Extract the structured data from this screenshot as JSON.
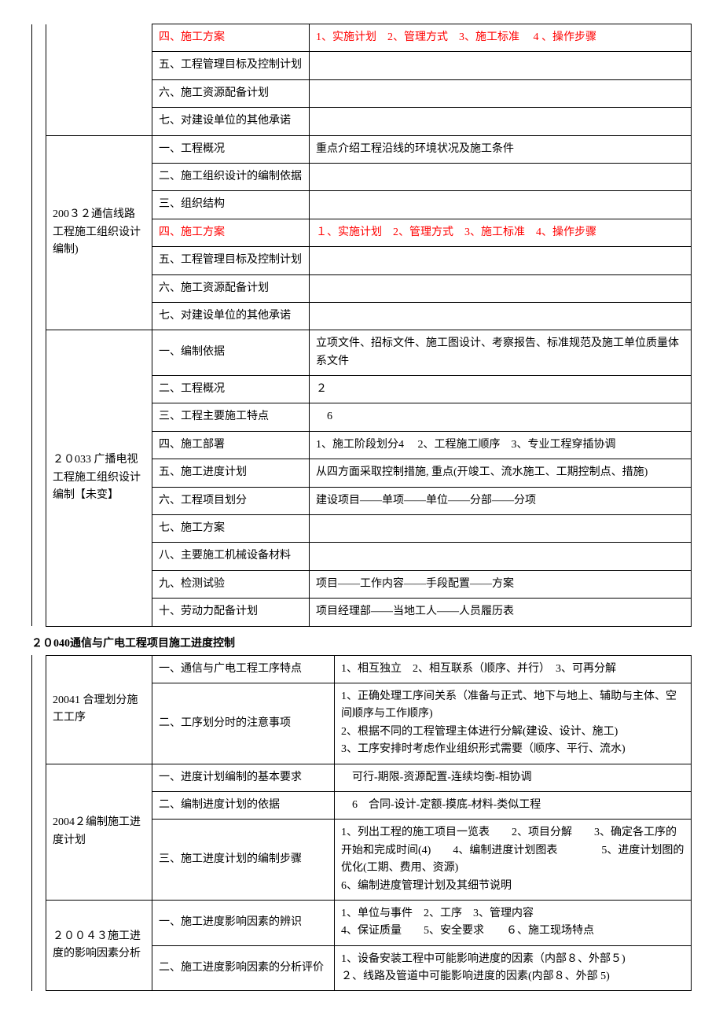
{
  "colors": {
    "text": "#000000",
    "highlight": "#ff0000",
    "border": "#000000",
    "background": "#ffffff"
  },
  "fonts": {
    "family": "SimSun",
    "size_pt": 10.5,
    "line_height": 1.6
  },
  "table1": {
    "group1": {
      "rows": [
        {
          "mid": "四、施工方案",
          "mid_red": true,
          "right": "1、实施计划　2、管理方式　3、施工标准　 4 、操作步骤",
          "right_red": true
        },
        {
          "mid": "五、工程管理目标及控制计划",
          "right": ""
        },
        {
          "mid": "六、施工资源配备计划",
          "right": ""
        },
        {
          "mid": "七、对建设单位的其他承诺",
          "right": ""
        }
      ]
    },
    "group2": {
      "left": "200３２通信线路工程施工组织设计编制)",
      "rows": [
        {
          "mid": "一、工程概况",
          "right": "重点介绍工程沿线的环境状况及施工条件"
        },
        {
          "mid": "二、施工组织设计的编制依据",
          "right": ""
        },
        {
          "mid": "三、组织结构",
          "right": ""
        },
        {
          "mid": "四、施工方案",
          "mid_red": true,
          "right": "１、实施计划　2、管理方式　3、施工标准　4、操作步骤",
          "right_red": true
        },
        {
          "mid": "五、工程管理目标及控制计划",
          "right": ""
        },
        {
          "mid": "六、施工资源配备计划",
          "right": ""
        },
        {
          "mid": "七、对建设单位的其他承诺",
          "right": ""
        }
      ]
    },
    "group3": {
      "left": "２０033 广播电视工程施工组织设计编制【未变】",
      "rows": [
        {
          "mid": "一、编制依据",
          "right": "立项文件、招标文件、施工图设计、考察报告、标准规范及施工单位质量体系文件"
        },
        {
          "mid": "二、工程概况",
          "right": " ２"
        },
        {
          "mid": "三、工程主要施工特点",
          "right": "　6"
        },
        {
          "mid": "四、施工部署",
          "right": "1、施工阶段划分4　 2、工程施工顺序　3、专业工程穿插协调"
        },
        {
          "mid": "五、施工进度计划",
          "right": "从四方面采取控制措施, 重点(开竣工、流水施工、工期控制点、措施)"
        },
        {
          "mid": "六、工程项目划分",
          "right": "建设项目——单项——单位——分部——分项"
        },
        {
          "mid": "七、施工方案",
          "right": ""
        },
        {
          "mid": "八、主要施工机械设备材料",
          "right": ""
        },
        {
          "mid": "九、检测试验",
          "right": "项目——工作内容——手段配置——方案"
        },
        {
          "mid": "十、劳动力配备计划",
          "right": "项目经理部——当地工人——人员履历表"
        }
      ]
    }
  },
  "section_title": "２０040通信与广电工程项目施工进度控制",
  "table2": {
    "group1": {
      "left": "20041 合理划分施工工序",
      "rows": [
        {
          "mid": "一、通信与广电工程工序特点",
          "right": "1、相互独立　2、相互联系（顺序、并行）　3、可再分解"
        },
        {
          "mid": "二、工序划分时的注意事项",
          "right": "1、正确处理工序间关系（准备与正式、地下与地上、辅助与主体、空间顺序与工作顺序)\n2、根据不同的工程管理主体进行分解(建设、设计、施工)\n3、工序安排时考虑作业组织形式需要（顺序、平行、流水)"
        }
      ]
    },
    "group2": {
      "left": "2004２编制施工进度计划",
      "rows": [
        {
          "mid": "一、进度计划编制的基本要求",
          "right": "　可行-期限-资源配置-连续均衡-相协调"
        },
        {
          "mid": "二、编制进度计划的依据",
          "right": "　6　合同-设计-定额-摸底-材料-类似工程"
        },
        {
          "mid": "三、施工进度计划的编制步骤",
          "right": "1、列出工程的施工项目一览表　　2、项目分解　　3、确定各工序的开始和完成时间(4)　　4、编制进度计划图表　　　　5、进度计划图的优化(工期、费用、资源)\n6、编制进度管理计划及其细节说明"
        }
      ]
    },
    "group3": {
      "left": "２００４３施工进度的影响因素分析",
      "rows": [
        {
          "mid": "一、施工进度影响因素的辨识",
          "right": "1、单位与事件　2、工序　3、管理内容\n4、保证质量　　5、安全要求　　６、施工现场特点"
        },
        {
          "mid": "二、施工进度影响因素的分析评价",
          "right": "1、设备安装工程中可能影响进度的因素（内部８、外部５)\n２、线路及管道中可能影响进度的因素(内部８、外部 5)"
        }
      ]
    }
  }
}
